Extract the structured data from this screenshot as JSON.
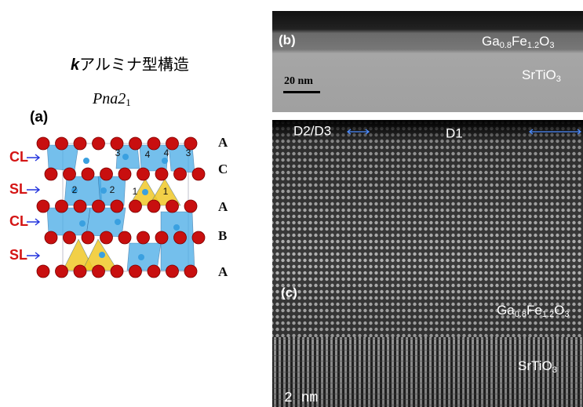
{
  "title": {
    "symbol": "k",
    "text": "アルミナ型構造"
  },
  "space_group": [
    "Pna2",
    "1"
  ],
  "panel_a": {
    "label": "(a)",
    "layer_types": [
      "CL",
      "SL",
      "CL",
      "SL"
    ],
    "stacking": [
      "A",
      "C",
      "A",
      "B",
      "A"
    ],
    "site_numbers": [
      "3",
      "4",
      "4",
      "3",
      "2",
      "2",
      "1",
      "1"
    ]
  },
  "panel_b": {
    "label": "(b)",
    "film": [
      "Ga",
      "0.8",
      "Fe",
      "1.2",
      "O",
      "3"
    ],
    "scale_bar": "20 nm",
    "substrate": [
      "SrTiO",
      "3"
    ]
  },
  "panel_c": {
    "label": "(c)",
    "domains": [
      "D2/D3",
      "D1"
    ],
    "film": [
      "Ga",
      "0.8",
      "Fe",
      "1.2",
      "O",
      "3"
    ],
    "substrate": [
      "SrTiO",
      "3"
    ],
    "scale_bar": "2 nm"
  }
}
